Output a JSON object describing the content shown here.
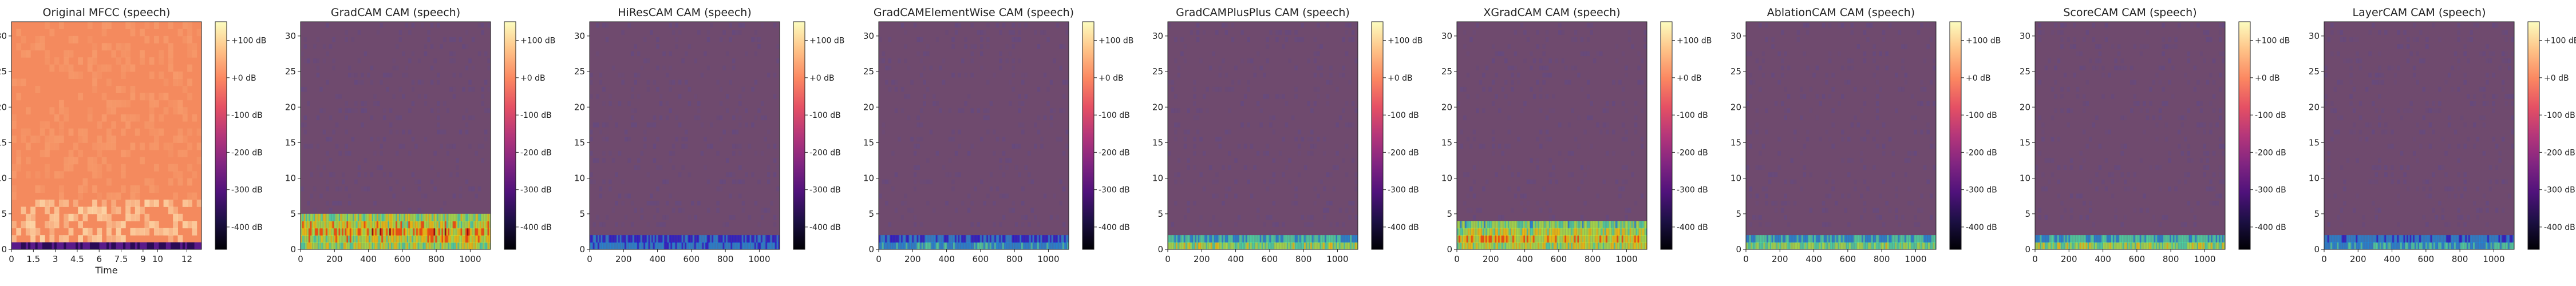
{
  "colors": {
    "overlay": "#6f4a6e",
    "mfcc_base": "#f48a5e",
    "axis": "#222222"
  },
  "chart_data": [
    {
      "type": "heatmap",
      "title": "Original MFCC (speech)",
      "xlabel": "Time",
      "ylabel": "",
      "xlim": [
        0,
        13
      ],
      "ylim": [
        0,
        32
      ],
      "x_ticks": [
        "0",
        "1.5",
        "3",
        "4.5",
        "6",
        "7.5",
        "9",
        "10",
        "12"
      ],
      "y_ticks": [
        "0",
        "5",
        "10",
        "15",
        "20",
        "25",
        "30"
      ],
      "colorbar": {
        "ticks": [
          "+100 dB",
          "+0 dB",
          "-100 dB",
          "-200 dB",
          "-300 dB",
          "-400 dB"
        ],
        "range": [
          -460,
          150
        ],
        "colormap": "magma"
      }
    },
    {
      "type": "heatmap",
      "title": "GradCAM CAM (speech)",
      "xlabel": "",
      "ylabel": "",
      "xlim": [
        0,
        1120
      ],
      "ylim": [
        0,
        32
      ],
      "x_ticks": [
        "0",
        "200",
        "400",
        "600",
        "800",
        "1000"
      ],
      "y_ticks": [
        "0",
        "5",
        "10",
        "15",
        "20",
        "25",
        "30"
      ],
      "colorbar": {
        "ticks": [
          "+100 dB",
          "+0 dB",
          "-100 dB",
          "-200 dB",
          "-300 dB",
          "-400 dB"
        ],
        "range": [
          -460,
          150
        ],
        "colormap": "magma"
      },
      "activation": {
        "band_rows": [
          0,
          4
        ],
        "peak_row": 2,
        "strength": 0.95
      }
    },
    {
      "type": "heatmap",
      "title": "HiResCAM CAM (speech)",
      "xlabel": "",
      "ylabel": "",
      "xlim": [
        0,
        1120
      ],
      "ylim": [
        0,
        32
      ],
      "x_ticks": [
        "0",
        "200",
        "400",
        "600",
        "800",
        "1000"
      ],
      "y_ticks": [
        "0",
        "5",
        "10",
        "15",
        "20",
        "25",
        "30"
      ],
      "colorbar": {
        "ticks": [
          "+100 dB",
          "+0 dB",
          "-100 dB",
          "-200 dB",
          "-300 dB",
          "-400 dB"
        ],
        "range": [
          -460,
          150
        ],
        "colormap": "magma"
      },
      "activation": {
        "band_rows": [
          0,
          1
        ],
        "peak_row": 0,
        "strength": 0.35
      }
    },
    {
      "type": "heatmap",
      "title": "GradCAMElementWise CAM (speech)",
      "xlabel": "",
      "ylabel": "",
      "xlim": [
        0,
        1120
      ],
      "ylim": [
        0,
        32
      ],
      "x_ticks": [
        "0",
        "200",
        "400",
        "600",
        "800",
        "1000"
      ],
      "y_ticks": [
        "0",
        "5",
        "10",
        "15",
        "20",
        "25",
        "30"
      ],
      "colorbar": {
        "ticks": [
          "+100 dB",
          "+0 dB",
          "-100 dB",
          "-200 dB",
          "-300 dB",
          "-400 dB"
        ],
        "range": [
          -460,
          150
        ],
        "colormap": "magma"
      },
      "activation": {
        "band_rows": [
          0,
          1
        ],
        "peak_row": 0,
        "strength": 0.4
      }
    },
    {
      "type": "heatmap",
      "title": "GradCAMPlusPlus CAM (speech)",
      "xlabel": "",
      "ylabel": "",
      "xlim": [
        0,
        1120
      ],
      "ylim": [
        0,
        32
      ],
      "x_ticks": [
        "0",
        "200",
        "400",
        "600",
        "800",
        "1000"
      ],
      "y_ticks": [
        "0",
        "5",
        "10",
        "15",
        "20",
        "25",
        "30"
      ],
      "colorbar": {
        "ticks": [
          "+100 dB",
          "+0 dB",
          "-100 dB",
          "-200 dB",
          "-300 dB",
          "-400 dB"
        ],
        "range": [
          -460,
          150
        ],
        "colormap": "magma"
      },
      "activation": {
        "band_rows": [
          0,
          1
        ],
        "peak_row": 0,
        "strength": 0.7
      }
    },
    {
      "type": "heatmap",
      "title": "XGradCAM CAM (speech)",
      "xlabel": "",
      "ylabel": "",
      "xlim": [
        0,
        1120
      ],
      "ylim": [
        0,
        32
      ],
      "x_ticks": [
        "0",
        "200",
        "400",
        "600",
        "800",
        "1000"
      ],
      "y_ticks": [
        "0",
        "5",
        "10",
        "15",
        "20",
        "25",
        "30"
      ],
      "colorbar": {
        "ticks": [
          "+100 dB",
          "+0 dB",
          "-100 dB",
          "-200 dB",
          "-300 dB",
          "-400 dB"
        ],
        "range": [
          -460,
          150
        ],
        "colormap": "magma"
      },
      "activation": {
        "band_rows": [
          0,
          3
        ],
        "peak_row": 1,
        "strength": 0.9
      }
    },
    {
      "type": "heatmap",
      "title": "AblationCAM CAM (speech)",
      "xlabel": "",
      "ylabel": "",
      "xlim": [
        0,
        1120
      ],
      "ylim": [
        0,
        32
      ],
      "x_ticks": [
        "0",
        "200",
        "400",
        "600",
        "800",
        "1000"
      ],
      "y_ticks": [
        "0",
        "5",
        "10",
        "15",
        "20",
        "25",
        "30"
      ],
      "colorbar": {
        "ticks": [
          "+100 dB",
          "+0 dB",
          "-100 dB",
          "-200 dB",
          "-300 dB",
          "-400 dB"
        ],
        "range": [
          -460,
          150
        ],
        "colormap": "magma"
      },
      "activation": {
        "band_rows": [
          0,
          1
        ],
        "peak_row": 0,
        "strength": 0.65
      }
    },
    {
      "type": "heatmap",
      "title": "ScoreCAM CAM (speech)",
      "xlabel": "",
      "ylabel": "",
      "xlim": [
        0,
        1120
      ],
      "ylim": [
        0,
        32
      ],
      "x_ticks": [
        "0",
        "200",
        "400",
        "600",
        "800",
        "1000"
      ],
      "y_ticks": [
        "0",
        "5",
        "10",
        "15",
        "20",
        "25",
        "30"
      ],
      "colorbar": {
        "ticks": [
          "+100 dB",
          "+0 dB",
          "-100 dB",
          "-200 dB",
          "-300 dB",
          "-400 dB"
        ],
        "range": [
          -460,
          150
        ],
        "colormap": "magma"
      },
      "activation": {
        "band_rows": [
          0,
          1
        ],
        "peak_row": 0,
        "strength": 0.7
      }
    },
    {
      "type": "heatmap",
      "title": "LayerCAM CAM (speech)",
      "xlabel": "",
      "ylabel": "",
      "xlim": [
        0,
        1120
      ],
      "ylim": [
        0,
        32
      ],
      "x_ticks": [
        "0",
        "200",
        "400",
        "600",
        "800",
        "1000"
      ],
      "y_ticks": [
        "0",
        "5",
        "10",
        "15",
        "20",
        "25",
        "30"
      ],
      "colorbar": {
        "ticks": [
          "+100 dB",
          "+0 dB",
          "-100 dB",
          "-200 dB",
          "-300 dB",
          "-400 dB"
        ],
        "range": [
          -460,
          150
        ],
        "colormap": "magma"
      },
      "activation": {
        "band_rows": [
          0,
          1
        ],
        "peak_row": 0,
        "strength": 0.45
      }
    }
  ]
}
